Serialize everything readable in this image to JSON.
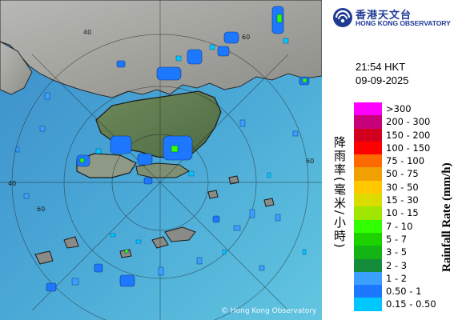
{
  "organization": {
    "name_zh": "香港天文台",
    "name_en": "HONG KONG OBSERVATORY"
  },
  "timestamp": {
    "time": "21:54 HKT",
    "date": "09-09-2025"
  },
  "map": {
    "copyright": "© Hong Kong Observatory",
    "range_ring_labels": [
      "40",
      "60",
      "60",
      "40",
      "60"
    ]
  },
  "legend": {
    "title_zh": "降雨率(毫米/小時)",
    "title_en": "Rainfall Rate (mm/h)",
    "levels": [
      {
        "label": ">300",
        "color": "#ff00ff"
      },
      {
        "label": "200 - 300",
        "color": "#c8007a"
      },
      {
        "label": "150 - 200",
        "color": "#d2001e"
      },
      {
        "label": "100 - 150",
        "color": "#ff0000"
      },
      {
        "label": "75 - 100",
        "color": "#ff6a00"
      },
      {
        "label": "50 - 75",
        "color": "#f0a000"
      },
      {
        "label": "30 - 50",
        "color": "#ffc800"
      },
      {
        "label": "15 - 30",
        "color": "#dcdc00"
      },
      {
        "label": "10 - 15",
        "color": "#a0e600"
      },
      {
        "label": "7 - 10",
        "color": "#32ff00"
      },
      {
        "label": "5 - 7",
        "color": "#1ed200"
      },
      {
        "label": "3 - 5",
        "color": "#14b414"
      },
      {
        "label": "2 - 3",
        "color": "#148c3c"
      },
      {
        "label": "1 - 2",
        "color": "#3ca0ff"
      },
      {
        "label": "0.50 - 1",
        "color": "#1e78ff"
      },
      {
        "label": "0.15 - 0.50",
        "color": "#00c8ff"
      }
    ]
  }
}
